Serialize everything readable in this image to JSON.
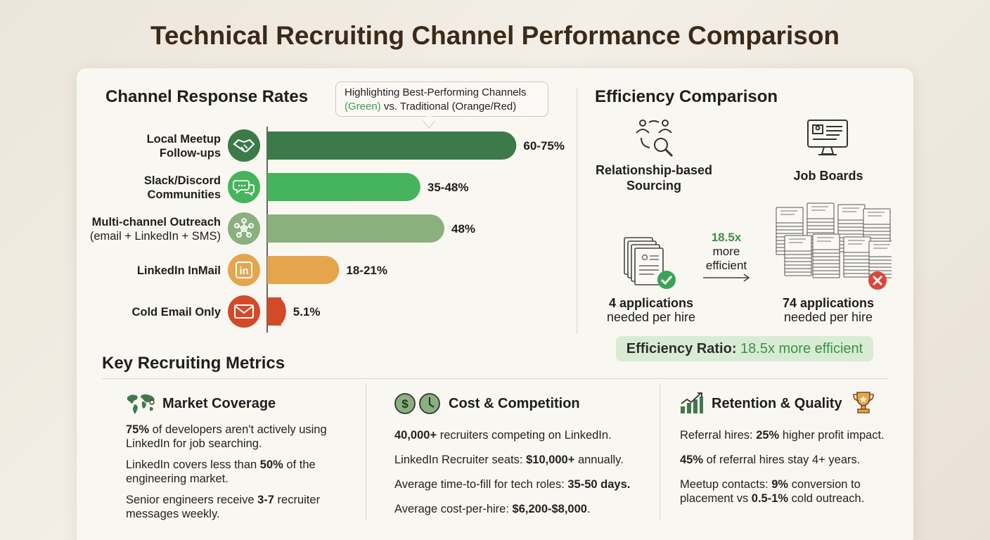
{
  "title": "Technical Recruiting Channel Performance Comparison",
  "colors": {
    "dark_green": "#3d7a4a",
    "bright_green": "#45b45c",
    "sage_green": "#8bb07e",
    "amber": "#e4a54d",
    "red_orange": "#d24a28"
  },
  "response_rates": {
    "title": "Channel Response Rates",
    "callout": {
      "line1": "Highlighting Best-Performing Channels",
      "green_word": "(Green)",
      "line2_rest": " vs. Traditional (Orange/Red)"
    }
  },
  "chart_data": {
    "type": "bar",
    "orientation": "horizontal",
    "title": "Channel Response Rates",
    "categories": [
      [
        "Local Meetup",
        "Follow-ups"
      ],
      [
        "Slack/Discord",
        "Communities"
      ],
      [
        "Multi-channel Outreach",
        "(email + LinkedIn + SMS)"
      ],
      [
        "LinkedIn InMail"
      ],
      [
        "Cold Email Only"
      ]
    ],
    "values": [
      67.5,
      41.5,
      48,
      19.5,
      5.1
    ],
    "labels": [
      "60-75%",
      "35-48%",
      "48%",
      "18-21%",
      "5.1%"
    ],
    "bar_colors": [
      "#3d7a4a",
      "#45b45c",
      "#8bb07e",
      "#e4a54d",
      "#d24a28"
    ],
    "icons": [
      "handshake-icon",
      "chat-bubbles-icon",
      "network-icon",
      "linkedin-icon",
      "envelope-icon"
    ],
    "xlim": [
      0,
      80
    ],
    "grid": false,
    "legend": "none"
  },
  "efficiency": {
    "title": "Efficiency Comparison",
    "left_label": [
      "Relationship-based",
      "Sourcing"
    ],
    "right_label": "Job Boards",
    "ratio_value": "18.5x",
    "ratio_text": [
      "more",
      "efficient"
    ],
    "left_stat": {
      "bold": "4 applications",
      "rest": "needed per hire"
    },
    "right_stat": {
      "bold": "74 applications",
      "rest": "needed per hire"
    },
    "badge": {
      "prefix": "Efficiency Ratio:",
      "value": " 18.5x more efficient"
    }
  },
  "metrics": {
    "title": "Key Recruiting Metrics",
    "cards": [
      {
        "title": "Market Coverage",
        "icon": "world-map-icon",
        "items": [
          [
            [
              "b",
              "75%"
            ],
            [
              "t",
              " of developers aren't actively using LinkedIn for job searching."
            ]
          ],
          [
            [
              "t",
              "LinkedIn covers less than "
            ],
            [
              "b",
              "50%"
            ],
            [
              "t",
              " of the engineering market."
            ]
          ],
          [
            [
              "t",
              "Senior engineers receive "
            ],
            [
              "b",
              "3-7"
            ],
            [
              "t",
              " recruiter messages weekly."
            ]
          ]
        ]
      },
      {
        "title": "Cost & Competition",
        "icon": "dollar-clock-icon",
        "items": [
          [
            [
              "b",
              "40,000+"
            ],
            [
              "t",
              " recruiters competing on LinkedIn."
            ]
          ],
          [
            [
              "t",
              "LinkedIn Recruiter seats: "
            ],
            [
              "b",
              "$10,000+"
            ],
            [
              "t",
              " annually."
            ]
          ],
          [
            [
              "t",
              "Average time-to-fill for tech roles: "
            ],
            [
              "b",
              "35-50 days."
            ]
          ],
          [
            [
              "t",
              "Average cost-per-hire: "
            ],
            [
              "b",
              "$6,200-$8,000"
            ],
            [
              "t",
              "."
            ]
          ]
        ]
      },
      {
        "title": "Retention & Quality",
        "icon": "growth-trophy-icon",
        "items": [
          [
            [
              "t",
              "Referral hires: "
            ],
            [
              "b",
              "25%"
            ],
            [
              "t",
              " higher profit impact."
            ]
          ],
          [
            [
              "b",
              "45%"
            ],
            [
              "t",
              " of referral hires stay 4+ years."
            ]
          ],
          [
            [
              "t",
              "Meetup contacts: "
            ],
            [
              "b",
              "9%"
            ],
            [
              "t",
              " conversion to placement vs "
            ],
            [
              "b",
              "0.5-1%"
            ],
            [
              "t",
              " cold outreach."
            ]
          ]
        ]
      }
    ]
  }
}
